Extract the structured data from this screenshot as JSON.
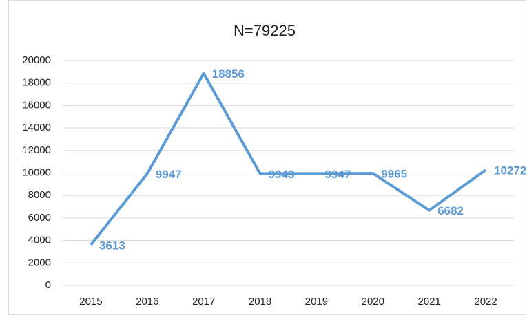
{
  "chart_data": {
    "type": "line",
    "title": "N=79225",
    "categories": [
      "2015",
      "2016",
      "2017",
      "2018",
      "2019",
      "2020",
      "2021",
      "2022"
    ],
    "values": [
      3613,
      9947,
      18856,
      9943,
      9947,
      9965,
      6682,
      10272
    ],
    "color": "#5b9bd5",
    "ylim": [
      0,
      20000
    ],
    "yticks": [
      0,
      2000,
      4000,
      6000,
      8000,
      10000,
      12000,
      14000,
      16000,
      18000,
      20000
    ],
    "grid": true
  }
}
